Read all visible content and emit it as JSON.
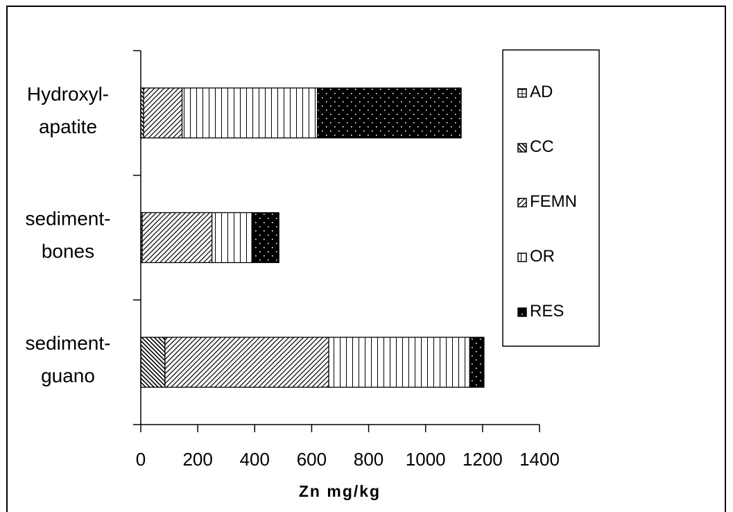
{
  "chart_data": {
    "type": "bar",
    "orientation": "horizontal",
    "stacked": true,
    "categories_display": [
      [
        "Hydroxyl-",
        "apatite"
      ],
      [
        "sediment-",
        "bones"
      ],
      [
        "sediment-",
        "guano"
      ]
    ],
    "series": [
      {
        "name": "AD",
        "pattern": "crosshatch",
        "values": [
          0,
          0,
          0
        ]
      },
      {
        "name": "CC",
        "pattern": "back-diagonal",
        "values": [
          10,
          5,
          85
        ]
      },
      {
        "name": "FEMN",
        "pattern": "diagonal",
        "values": [
          135,
          245,
          575
        ]
      },
      {
        "name": "OR",
        "pattern": "vertical",
        "values": [
          475,
          140,
          495
        ]
      },
      {
        "name": "RES",
        "pattern": "dots",
        "values": [
          505,
          95,
          50
        ]
      }
    ],
    "xlabel": "Zn mg/kg",
    "xlim": [
      0,
      1400
    ],
    "xticks": [
      0,
      200,
      400,
      600,
      800,
      1000,
      1200,
      1400
    ],
    "grid": false,
    "legend_position": "right"
  }
}
